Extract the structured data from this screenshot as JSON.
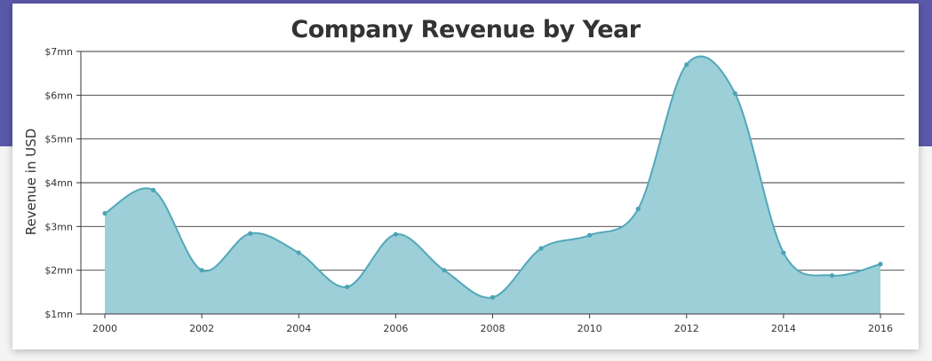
{
  "colors": {
    "background_band": "#5a58a8",
    "area_fill": "#9dcfd9",
    "line": "#51a8ba",
    "marker": "#4aa3b6"
  },
  "chart_data": {
    "type": "area",
    "title": "Company Revenue by Year",
    "ylabel": "Revenue in USD",
    "xlabel": "",
    "xlim": [
      2000,
      2016
    ],
    "x_ticks": [
      2000,
      2002,
      2004,
      2006,
      2008,
      2010,
      2012,
      2014,
      2016
    ],
    "x_tick_labels": [
      "2000",
      "2002",
      "2004",
      "2006",
      "2008",
      "2010",
      "2012",
      "2014",
      "2016"
    ],
    "ylim": [
      1,
      7
    ],
    "y_ticks": [
      1,
      2,
      3,
      4,
      5,
      6,
      7
    ],
    "y_tick_labels": [
      "$1mn",
      "$2mn",
      "$3mn",
      "$4mn",
      "$5mn",
      "$6mn",
      "$7mn"
    ],
    "grid": true,
    "smooth": true,
    "x": [
      2000,
      2001,
      2002,
      2003,
      2004,
      2005,
      2006,
      2007,
      2008,
      2009,
      2010,
      2011,
      2012,
      2013,
      2014,
      2015,
      2016
    ],
    "values": [
      3.3,
      3.83,
      2.0,
      2.84,
      2.4,
      1.62,
      2.82,
      2.0,
      1.38,
      2.5,
      2.8,
      3.4,
      6.7,
      6.04,
      2.4,
      1.88,
      2.14
    ]
  }
}
